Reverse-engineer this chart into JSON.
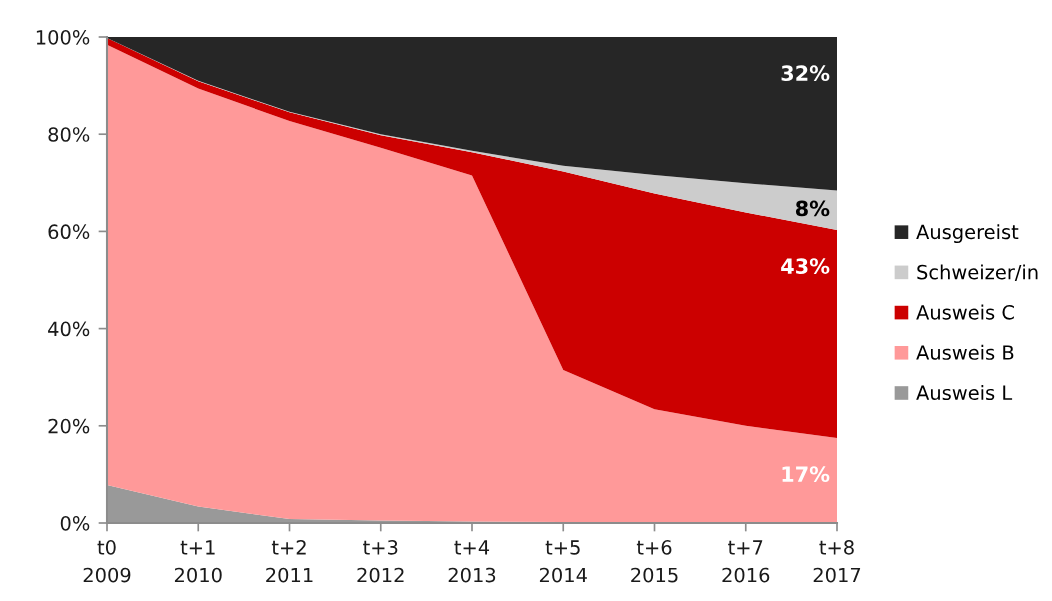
{
  "chart_data": {
    "type": "area",
    "stacked": true,
    "categories": [
      "t0\n2009",
      "t+1\n2010",
      "t+2\n2011",
      "t+3\n2012",
      "t+4\n2013",
      "t+5\n2014",
      "t+6\n2015",
      "t+7\n2016",
      "t+8\n2017"
    ],
    "series": [
      {
        "name": "Ausweis L",
        "color": "#999999",
        "values": [
          7.8,
          3.4,
          0.8,
          0.5,
          0.3,
          0.2,
          0.1,
          0.1,
          0.1
        ]
      },
      {
        "name": "Ausweis B",
        "color": "#ff9999",
        "values": [
          90.6,
          86.0,
          81.9,
          76.7,
          71.2,
          31.3,
          23.3,
          19.9,
          17.4
        ],
        "value_labels": [
          null,
          null,
          null,
          null,
          null,
          null,
          null,
          null,
          "17%"
        ]
      },
      {
        "name": "Ausweis C",
        "color": "#cc0000",
        "values": [
          1.4,
          1.5,
          1.8,
          2.6,
          4.8,
          40.8,
          44.4,
          43.9,
          42.8
        ],
        "value_labels": [
          null,
          null,
          null,
          null,
          null,
          null,
          null,
          null,
          "43%"
        ]
      },
      {
        "name": "Schweizer/in",
        "color": "#cccccc",
        "values": [
          0,
          0.1,
          0.1,
          0.2,
          0.3,
          1.2,
          3.8,
          6.0,
          8.1
        ],
        "value_labels": [
          null,
          null,
          null,
          null,
          null,
          null,
          null,
          null,
          "8%"
        ]
      },
      {
        "name": "Ausgereist",
        "color": "#262626",
        "values": [
          0.2,
          9.0,
          15.4,
          20.0,
          23.4,
          26.5,
          28.4,
          30.1,
          31.6
        ],
        "value_labels": [
          null,
          null,
          null,
          null,
          null,
          null,
          null,
          null,
          "32%"
        ]
      }
    ],
    "ylim": [
      0,
      100
    ],
    "yticks": [
      {
        "value": 0,
        "label": "0%"
      },
      {
        "value": 20,
        "label": "20%"
      },
      {
        "value": 40,
        "label": "40%"
      },
      {
        "value": 60,
        "label": "60%"
      },
      {
        "value": 80,
        "label": "80%"
      },
      {
        "value": 100,
        "label": "100%"
      }
    ],
    "grid": false,
    "legend": "right"
  }
}
